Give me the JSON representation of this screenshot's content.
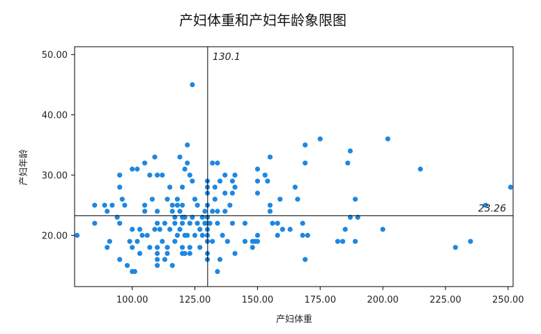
{
  "chart_data": {
    "type": "scatter",
    "title": "产妇体重和产妇年龄象限图",
    "xlabel": "产妇体重",
    "ylabel": "产妇年龄",
    "xlim": [
      77,
      252
    ],
    "ylim": [
      11.5,
      51.3
    ],
    "xticks": [
      100,
      125,
      150,
      175,
      200,
      225,
      250
    ],
    "xtick_labels": [
      "100.00",
      "125.00",
      "150.00",
      "175.00",
      "200.00",
      "225.00",
      "250.00"
    ],
    "yticks": [
      20,
      30,
      40,
      50
    ],
    "ytick_labels": [
      "20.00",
      "30.00",
      "40.00",
      "50.00"
    ],
    "reference_lines": {
      "x": 130.1,
      "x_label": "130.1",
      "y": 23.26,
      "y_label": "23.26"
    },
    "grid": false,
    "marker_color": "#1f87e0",
    "points": [
      [
        78,
        20
      ],
      [
        85,
        25
      ],
      [
        85,
        22
      ],
      [
        89,
        25
      ],
      [
        90,
        18
      ],
      [
        90,
        24
      ],
      [
        91,
        19
      ],
      [
        92,
        25
      ],
      [
        94,
        23
      ],
      [
        95,
        16
      ],
      [
        95,
        22
      ],
      [
        95,
        28
      ],
      [
        95,
        30
      ],
      [
        96,
        26
      ],
      [
        97,
        25
      ],
      [
        98,
        15
      ],
      [
        99,
        19
      ],
      [
        100,
        21
      ],
      [
        100,
        18
      ],
      [
        100,
        14
      ],
      [
        100,
        31
      ],
      [
        101,
        14
      ],
      [
        102,
        31
      ],
      [
        102,
        19
      ],
      [
        103,
        17
      ],
      [
        103,
        21
      ],
      [
        104,
        20
      ],
      [
        105,
        25
      ],
      [
        105,
        24
      ],
      [
        105,
        32
      ],
      [
        106,
        20
      ],
      [
        107,
        30
      ],
      [
        107,
        18
      ],
      [
        108,
        26
      ],
      [
        109,
        33
      ],
      [
        109,
        21
      ],
      [
        110,
        24
      ],
      [
        110,
        22
      ],
      [
        110,
        18
      ],
      [
        110,
        17
      ],
      [
        110,
        16
      ],
      [
        110,
        15
      ],
      [
        110,
        30
      ],
      [
        111,
        21
      ],
      [
        112,
        19
      ],
      [
        112,
        30
      ],
      [
        113,
        22
      ],
      [
        113,
        16
      ],
      [
        114,
        26
      ],
      [
        114,
        18
      ],
      [
        114,
        17
      ],
      [
        115,
        21
      ],
      [
        115,
        28
      ],
      [
        116,
        25
      ],
      [
        116,
        24
      ],
      [
        116,
        15
      ],
      [
        117,
        23
      ],
      [
        117,
        22
      ],
      [
        117,
        19
      ],
      [
        118,
        26
      ],
      [
        118,
        25
      ],
      [
        118,
        20
      ],
      [
        119,
        33
      ],
      [
        119,
        24
      ],
      [
        119,
        21
      ],
      [
        120,
        17
      ],
      [
        120,
        18
      ],
      [
        120,
        22
      ],
      [
        120,
        23
      ],
      [
        120,
        25
      ],
      [
        120,
        28
      ],
      [
        121,
        31
      ],
      [
        121,
        20
      ],
      [
        121,
        23
      ],
      [
        121,
        17
      ],
      [
        122,
        35
      ],
      [
        122,
        32
      ],
      [
        122,
        20
      ],
      [
        123,
        30
      ],
      [
        123,
        22
      ],
      [
        123,
        17
      ],
      [
        123,
        18
      ],
      [
        124,
        45
      ],
      [
        124,
        29
      ],
      [
        124,
        23
      ],
      [
        125,
        26
      ],
      [
        125,
        20
      ],
      [
        126,
        22
      ],
      [
        126,
        25
      ],
      [
        127,
        21
      ],
      [
        127,
        18
      ],
      [
        128,
        20
      ],
      [
        128,
        23
      ],
      [
        129,
        22
      ],
      [
        129,
        24
      ],
      [
        130,
        23
      ],
      [
        130,
        29
      ],
      [
        130,
        28
      ],
      [
        130,
        27
      ],
      [
        130,
        25
      ],
      [
        130,
        22
      ],
      [
        130,
        21
      ],
      [
        130,
        19
      ],
      [
        130,
        17
      ],
      [
        130,
        16
      ],
      [
        130,
        20
      ],
      [
        131,
        22
      ],
      [
        132,
        32
      ],
      [
        132,
        24
      ],
      [
        132,
        19
      ],
      [
        133,
        28
      ],
      [
        133,
        26
      ],
      [
        134,
        32
      ],
      [
        134,
        24
      ],
      [
        134,
        22
      ],
      [
        134,
        14
      ],
      [
        135,
        16
      ],
      [
        135,
        29
      ],
      [
        136,
        20
      ],
      [
        137,
        30
      ],
      [
        137,
        27
      ],
      [
        137,
        24
      ],
      [
        138,
        19
      ],
      [
        139,
        25
      ],
      [
        140,
        29
      ],
      [
        140,
        27
      ],
      [
        140,
        22
      ],
      [
        141,
        30
      ],
      [
        141,
        17
      ],
      [
        141,
        28
      ],
      [
        145,
        22
      ],
      [
        145,
        19
      ],
      [
        148,
        19
      ],
      [
        148,
        18
      ],
      [
        149,
        19
      ],
      [
        150,
        31
      ],
      [
        150,
        29
      ],
      [
        150,
        27
      ],
      [
        150,
        20
      ],
      [
        150,
        19
      ],
      [
        153,
        30
      ],
      [
        154,
        29
      ],
      [
        155,
        25
      ],
      [
        155,
        33
      ],
      [
        155,
        24
      ],
      [
        156,
        22
      ],
      [
        158,
        22
      ],
      [
        158,
        20
      ],
      [
        159,
        26
      ],
      [
        160,
        21
      ],
      [
        163,
        21
      ],
      [
        165,
        28
      ],
      [
        166,
        26
      ],
      [
        168,
        22
      ],
      [
        168,
        20
      ],
      [
        169,
        35
      ],
      [
        169,
        32
      ],
      [
        169,
        16
      ],
      [
        170,
        20
      ],
      [
        175,
        36
      ],
      [
        182,
        19
      ],
      [
        184,
        19
      ],
      [
        185,
        21
      ],
      [
        186,
        32
      ],
      [
        187,
        34
      ],
      [
        187,
        23
      ],
      [
        189,
        26
      ],
      [
        189,
        19
      ],
      [
        190,
        23
      ],
      [
        200,
        21
      ],
      [
        202,
        36
      ],
      [
        215,
        31
      ],
      [
        229,
        18
      ],
      [
        235,
        19
      ],
      [
        241,
        25
      ],
      [
        251,
        28
      ]
    ]
  }
}
